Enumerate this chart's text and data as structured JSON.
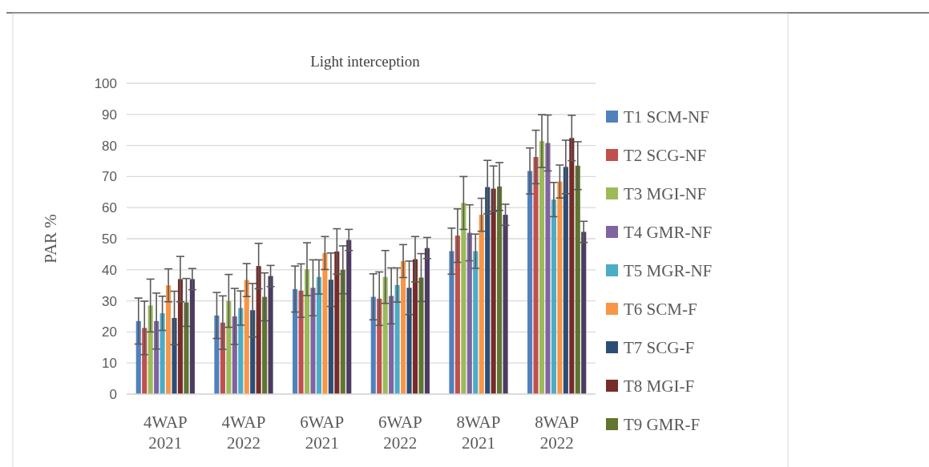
{
  "chart_data": {
    "type": "bar",
    "title": "Light interception",
    "ylabel": "PAR %",
    "categories": [
      "4WAP\n2021",
      "4WAP\n2022",
      "6WAP\n2021",
      "6WAP\n2022",
      "8WAP\n2021",
      "8WAP\n2022"
    ],
    "ylim": [
      0,
      100
    ],
    "yticks": [
      0,
      10,
      20,
      30,
      40,
      50,
      60,
      70,
      80,
      90,
      100
    ],
    "grid": "y",
    "legend": "right",
    "series": [
      {
        "name": "T1 SCM-NF",
        "color": "#4f81bd",
        "values": [
          23.5,
          25.3,
          33.8,
          31.3,
          46.0,
          71.8
        ],
        "errors": [
          7.4,
          7.4,
          7.4,
          7.4,
          7.4,
          7.4
        ]
      },
      {
        "name": "T2 SCG-NF",
        "color": "#c0504d",
        "values": [
          21.3,
          23.0,
          33.3,
          30.7,
          51.0,
          76.3
        ],
        "errors": [
          8.6,
          8.6,
          8.6,
          8.6,
          8.6,
          8.6
        ]
      },
      {
        "name": "T3 MGI-NF",
        "color": "#9bbb59",
        "values": [
          28.5,
          30.0,
          40.2,
          37.7,
          61.5,
          81.4
        ],
        "errors": [
          8.5,
          8.5,
          8.5,
          8.5,
          8.5,
          8.5
        ]
      },
      {
        "name": "T4 GMR-NF",
        "color": "#8064a2",
        "values": [
          23.5,
          25.0,
          34.2,
          31.6,
          51.9,
          80.8
        ],
        "errors": [
          9,
          9,
          9,
          9,
          9,
          9
        ]
      },
      {
        "name": "T5 MGR-NF",
        "color": "#4bacc6",
        "values": [
          26.0,
          27.7,
          37.7,
          35.1,
          46.0,
          62.6
        ],
        "errors": [
          5.5,
          5.5,
          5.5,
          5.5,
          5.5,
          5.5
        ]
      },
      {
        "name": "T6 SCM-F",
        "color": "#f79646",
        "values": [
          35.0,
          36.7,
          45.4,
          42.8,
          57.7,
          68.4
        ],
        "errors": [
          5.3,
          5.3,
          5.3,
          5.3,
          5.3,
          5.3
        ]
      },
      {
        "name": "T7 SCG-F",
        "color": "#2c4d75",
        "values": [
          24.5,
          27.0,
          36.8,
          34.2,
          66.6,
          73.1
        ],
        "errors": [
          8.6,
          8.6,
          8.6,
          8.6,
          8.6,
          8.6
        ]
      },
      {
        "name": "T8 MGI-F",
        "color": "#772c2a",
        "values": [
          37.0,
          41.2,
          45.9,
          43.4,
          66.1,
          82.4
        ],
        "errors": [
          7.3,
          7.3,
          7.3,
          7.3,
          7.3,
          7.3
        ]
      },
      {
        "name": "T9 GMR-F",
        "color": "#5f7530",
        "values": [
          29.5,
          31.3,
          40.0,
          37.5,
          66.8,
          73.5
        ],
        "errors": [
          7.7,
          7.7,
          7.7,
          7.7,
          7.7,
          7.7
        ]
      },
      {
        "color": "#4d3b62",
        "values": [
          37.0,
          38.0,
          49.6,
          47.0,
          57.7,
          52.2
        ],
        "errors": [
          3.4,
          3.4,
          3.4,
          3.4,
          3.4,
          3.4
        ]
      }
    ]
  }
}
